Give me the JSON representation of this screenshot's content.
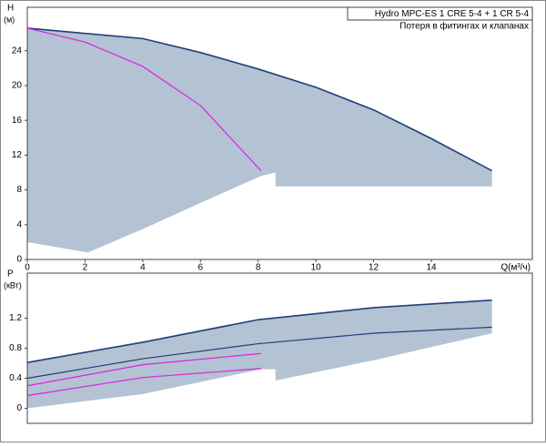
{
  "chart_data": [
    {
      "type": "line",
      "y_label": "H",
      "y_unit": "(м)",
      "x_label": "Q(м³/ч)",
      "legend_title": "Hydro MPC-ES 1 CRE 5-4  +  1 CR 5-4",
      "legend_note": "Потеря в фитингах и клапанах",
      "xlim": [
        0,
        17.5
      ],
      "ylim": [
        0,
        29
      ],
      "xticks": [
        0,
        2,
        4,
        6,
        8,
        10,
        12,
        14
      ],
      "yticks": [
        0,
        4,
        8,
        12,
        16,
        20,
        24
      ],
      "area": {
        "color": "#b3c3d3",
        "x": [
          0,
          2,
          4,
          6,
          8,
          10,
          12,
          14,
          16.1,
          16.1,
          8.6,
          8.6,
          8.1,
          6,
          4,
          2.1,
          0
        ],
        "y": [
          26.6,
          26,
          25.4,
          23.8,
          21.9,
          19.8,
          17.2,
          13.9,
          10.2,
          8.4,
          8.4,
          10,
          9.6,
          6.5,
          3.5,
          0.8,
          2
        ]
      },
      "series": [
        {
          "color": "#1f3f7a",
          "x": [
            0,
            2,
            4,
            6,
            8,
            10,
            12,
            14,
            16.1
          ],
          "values": [
            26.6,
            26,
            25.4,
            23.8,
            21.9,
            19.8,
            17.2,
            13.9,
            10.2
          ]
        },
        {
          "color": "#e020e0",
          "x": [
            0,
            2,
            4,
            6,
            8.1
          ],
          "values": [
            26.6,
            25,
            22.2,
            17.7,
            10.2
          ]
        }
      ]
    },
    {
      "type": "line",
      "y_label": "P",
      "y_unit": "(кВт)",
      "xlim": [
        0,
        17.5
      ],
      "ylim": [
        -0.2,
        1.8
      ],
      "yticks": [
        0,
        0.4,
        0.8,
        1.2
      ],
      "area": {
        "color": "#b3c3d3",
        "x": [
          0,
          4,
          8,
          12,
          16.1,
          16.1,
          12,
          8.6,
          8.6,
          8.1,
          4,
          0
        ],
        "y": [
          0.62,
          0.88,
          1.18,
          1.34,
          1.44,
          1.0,
          0.64,
          0.37,
          0.52,
          0.52,
          0.19,
          0
        ]
      },
      "series": [
        {
          "color": "#1f3f7a",
          "x": [
            0,
            4,
            8,
            12,
            16.1
          ],
          "values": [
            0.61,
            0.88,
            1.18,
            1.34,
            1.44
          ]
        },
        {
          "color": "#1f3f7a",
          "x": [
            0,
            4,
            8,
            12,
            16.1
          ],
          "values": [
            0.4,
            0.66,
            0.86,
            1.0,
            1.08
          ]
        },
        {
          "color": "#e020e0",
          "x": [
            0,
            4,
            8.1
          ],
          "values": [
            0.3,
            0.58,
            0.73
          ]
        },
        {
          "color": "#e020e0",
          "x": [
            0,
            4,
            8.1
          ],
          "values": [
            0.17,
            0.41,
            0.53
          ]
        }
      ]
    }
  ]
}
